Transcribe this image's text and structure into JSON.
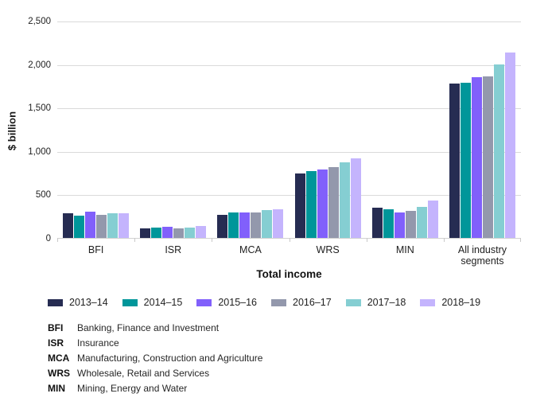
{
  "chart_data": {
    "type": "bar",
    "title": "",
    "xlabel": "Total income",
    "ylabel": "$ billion",
    "ylim": [
      0,
      2500
    ],
    "y_ticks": [
      "0",
      "500",
      "1,000",
      "1,500",
      "2,000",
      "2,500"
    ],
    "grid": "horizontal gridlines at each 500",
    "legend_position": "bottom",
    "categories": [
      "BFI",
      "ISR",
      "MCA",
      "WRS",
      "MIN",
      "All industry segments"
    ],
    "series": [
      {
        "name": "2013–14",
        "color": "#262c52",
        "values": [
          280,
          110,
          265,
          740,
          350,
          1775
        ]
      },
      {
        "name": "2014–15",
        "color": "#00969a",
        "values": [
          255,
          120,
          290,
          765,
          330,
          1790
        ]
      },
      {
        "name": "2015–16",
        "color": "#8160fb",
        "values": [
          300,
          125,
          295,
          790,
          290,
          1850
        ]
      },
      {
        "name": "2016–17",
        "color": "#9398ac",
        "values": [
          265,
          110,
          295,
          815,
          315,
          1860
        ]
      },
      {
        "name": "2017–18",
        "color": "#85ced2",
        "values": [
          285,
          120,
          320,
          870,
          360,
          2000
        ]
      },
      {
        "name": "2018–19",
        "color": "#c4b4fd",
        "values": [
          280,
          135,
          330,
          920,
          430,
          2135
        ]
      }
    ]
  },
  "axis": {
    "ylabel": "$ billion",
    "xlabel": "Total income"
  },
  "key": {
    "items": [
      {
        "abbr": "BFI",
        "label": "Banking, Finance and Investment"
      },
      {
        "abbr": "ISR",
        "label": "Insurance"
      },
      {
        "abbr": "MCA",
        "label": "Manufacturing, Construction and Agriculture"
      },
      {
        "abbr": "WRS",
        "label": "Wholesale, Retail and Services"
      },
      {
        "abbr": "MIN",
        "label": "Mining, Energy and Water"
      }
    ]
  },
  "colors": {
    "gridline": "#dadada",
    "axis_line": "#d2d2d2",
    "text": "#262626"
  }
}
